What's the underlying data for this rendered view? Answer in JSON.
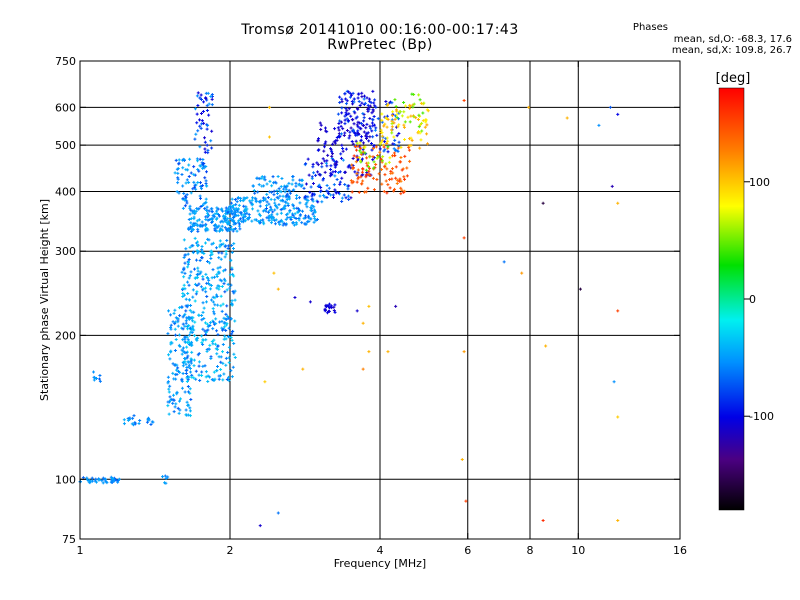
{
  "header": {
    "title": "Tromsø 20141010 00:16:00-00:17:43",
    "subtitle": "RwPretec (Bp)",
    "stats_title": "Phases",
    "stats_o": "mean, sd,O: -68.3, 17.6",
    "stats_x": "mean, sd,X: 109.8, 26.7"
  },
  "colorbar": {
    "unit": "[deg]",
    "range": [
      -180,
      180
    ],
    "ticks": [
      100,
      0,
      -100
    ]
  },
  "chart_data": {
    "type": "scatter",
    "xlabel": "Frequency [MHz]",
    "ylabel": "Stationary phase Virtual Height [km]",
    "xscale": "log",
    "yscale": "log",
    "xlim": [
      1,
      16
    ],
    "ylim": [
      75,
      750
    ],
    "x_ticks": [
      1,
      2,
      4,
      6,
      8,
      10,
      16
    ],
    "y_ticks": [
      75,
      100,
      200,
      300,
      400,
      500,
      600,
      750
    ],
    "x_grid": [
      2,
      4,
      6,
      8,
      10
    ],
    "y_grid": [
      100,
      200,
      300,
      400,
      500,
      600
    ],
    "grid": true,
    "colorbar_label": "[deg]",
    "clusters": [
      {
        "fmin": 1.0,
        "fmax": 1.2,
        "hmin": 98,
        "hmax": 101,
        "n": 45,
        "pmin": -85,
        "pmax": -65
      },
      {
        "fmin": 1.2,
        "fmax": 1.45,
        "hmin": 130,
        "hmax": 136,
        "n": 22,
        "pmin": -85,
        "pmax": -65
      },
      {
        "fmin": 1.05,
        "fmax": 1.1,
        "hmin": 160,
        "hmax": 168,
        "n": 8,
        "pmin": -85,
        "pmax": -70
      },
      {
        "fmin": 1.45,
        "fmax": 1.5,
        "hmin": 98,
        "hmax": 102,
        "n": 6,
        "pmin": -85,
        "pmax": -65
      },
      {
        "fmin": 1.5,
        "fmax": 1.68,
        "hmin": 135,
        "hmax": 230,
        "n": 140,
        "pmin": -85,
        "pmax": -55
      },
      {
        "fmin": 1.6,
        "fmax": 2.05,
        "hmin": 160,
        "hmax": 320,
        "n": 380,
        "pmin": -85,
        "pmax": -50
      },
      {
        "fmin": 1.65,
        "fmax": 2.1,
        "hmin": 330,
        "hmax": 370,
        "n": 170,
        "pmin": -85,
        "pmax": -60
      },
      {
        "fmin": 1.55,
        "fmax": 1.8,
        "hmin": 360,
        "hmax": 470,
        "n": 90,
        "pmin": -90,
        "pmax": -60
      },
      {
        "fmin": 1.7,
        "fmax": 1.85,
        "hmin": 480,
        "hmax": 650,
        "n": 50,
        "pmin": -110,
        "pmax": -70
      },
      {
        "fmin": 2.0,
        "fmax": 3.0,
        "hmin": 340,
        "hmax": 390,
        "n": 230,
        "pmin": -85,
        "pmax": -60
      },
      {
        "fmin": 2.2,
        "fmax": 2.8,
        "hmin": 390,
        "hmax": 430,
        "n": 70,
        "pmin": -85,
        "pmax": -60
      },
      {
        "fmin": 2.8,
        "fmax": 3.5,
        "hmin": 380,
        "hmax": 470,
        "n": 90,
        "pmin": -110,
        "pmax": -70
      },
      {
        "fmin": 3.0,
        "fmax": 3.9,
        "hmin": 430,
        "hmax": 560,
        "n": 110,
        "pmin": -120,
        "pmax": -95
      },
      {
        "fmin": 3.3,
        "fmax": 3.9,
        "hmin": 520,
        "hmax": 650,
        "n": 120,
        "pmin": -120,
        "pmax": -80
      },
      {
        "fmin": 3.9,
        "fmax": 4.4,
        "hmin": 480,
        "hmax": 630,
        "n": 40,
        "pmin": -110,
        "pmax": -75
      },
      {
        "fmin": 3.1,
        "fmax": 3.25,
        "hmin": 222,
        "hmax": 233,
        "n": 22,
        "pmin": -115,
        "pmax": -100
      },
      {
        "fmin": 3.5,
        "fmax": 4.6,
        "hmin": 395,
        "hmax": 500,
        "n": 110,
        "pmin": 120,
        "pmax": 160
      },
      {
        "fmin": 4.0,
        "fmax": 5.0,
        "hmin": 490,
        "hmax": 620,
        "n": 70,
        "pmin": 70,
        "pmax": 110
      },
      {
        "fmin": 4.2,
        "fmax": 4.9,
        "hmin": 530,
        "hmax": 640,
        "n": 25,
        "pmin": 20,
        "pmax": 60
      },
      {
        "fmin": 3.6,
        "fmax": 4.2,
        "hmin": 440,
        "hmax": 510,
        "n": 25,
        "pmin": 20,
        "pmax": 70
      }
    ],
    "points": [
      {
        "x": 2.4,
        "y": 600,
        "p": 95
      },
      {
        "x": 2.4,
        "y": 520,
        "p": 95
      },
      {
        "x": 2.45,
        "y": 270,
        "p": 95
      },
      {
        "x": 2.5,
        "y": 250,
        "p": 100
      },
      {
        "x": 2.7,
        "y": 240,
        "p": -110
      },
      {
        "x": 2.9,
        "y": 235,
        "p": -110
      },
      {
        "x": 2.8,
        "y": 170,
        "p": 100
      },
      {
        "x": 2.35,
        "y": 160,
        "p": 90
      },
      {
        "x": 2.5,
        "y": 85,
        "p": -80
      },
      {
        "x": 2.3,
        "y": 80,
        "p": -110
      },
      {
        "x": 3.8,
        "y": 230,
        "p": 95
      },
      {
        "x": 4.3,
        "y": 230,
        "p": -120
      },
      {
        "x": 3.6,
        "y": 225,
        "p": -110
      },
      {
        "x": 3.7,
        "y": 212,
        "p": 100
      },
      {
        "x": 3.8,
        "y": 185,
        "p": 100
      },
      {
        "x": 4.15,
        "y": 185,
        "p": 100
      },
      {
        "x": 3.7,
        "y": 170,
        "p": 120
      },
      {
        "x": 5.9,
        "y": 620,
        "p": 150
      },
      {
        "x": 5.9,
        "y": 320,
        "p": 150
      },
      {
        "x": 5.9,
        "y": 185,
        "p": 110
      },
      {
        "x": 5.85,
        "y": 110,
        "p": 100
      },
      {
        "x": 5.95,
        "y": 90,
        "p": 150
      },
      {
        "x": 7.1,
        "y": 285,
        "p": -80
      },
      {
        "x": 7.7,
        "y": 270,
        "p": 110
      },
      {
        "x": 7.95,
        "y": 600,
        "p": 100
      },
      {
        "x": 8.5,
        "y": 378,
        "p": -160
      },
      {
        "x": 8.6,
        "y": 190,
        "p": 100
      },
      {
        "x": 8.5,
        "y": 82,
        "p": 160
      },
      {
        "x": 9.5,
        "y": 570,
        "p": 100
      },
      {
        "x": 10.1,
        "y": 250,
        "p": -160
      },
      {
        "x": 11.0,
        "y": 550,
        "p": -75
      },
      {
        "x": 11.6,
        "y": 600,
        "p": -85
      },
      {
        "x": 12.0,
        "y": 580,
        "p": -100
      },
      {
        "x": 11.7,
        "y": 410,
        "p": -120
      },
      {
        "x": 12.0,
        "y": 378,
        "p": 100
      },
      {
        "x": 12.0,
        "y": 225,
        "p": 150
      },
      {
        "x": 11.8,
        "y": 160,
        "p": -75
      },
      {
        "x": 12.0,
        "y": 135,
        "p": 90
      },
      {
        "x": 12.0,
        "y": 82,
        "p": 100
      },
      {
        "x": 5.0,
        "y": 590,
        "p": 90
      }
    ]
  }
}
